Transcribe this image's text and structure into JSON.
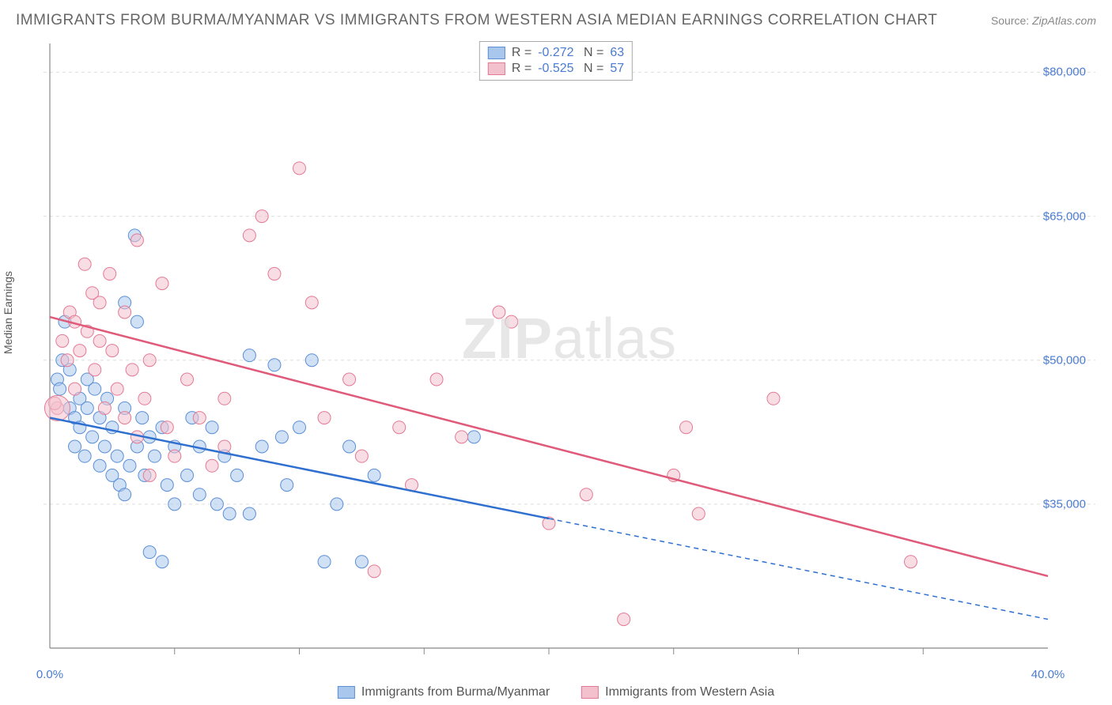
{
  "title": "IMMIGRANTS FROM BURMA/MYANMAR VS IMMIGRANTS FROM WESTERN ASIA MEDIAN EARNINGS CORRELATION CHART",
  "source_label": "Source:",
  "source_value": "ZipAtlas.com",
  "y_axis_label": "Median Earnings",
  "watermark_bold": "ZIP",
  "watermark_rest": "atlas",
  "x_min": 0.0,
  "x_max": 40.0,
  "y_min": 20000,
  "y_max": 83000,
  "y_ticks": [
    {
      "value": 35000,
      "label": "$35,000"
    },
    {
      "value": 50000,
      "label": "$50,000"
    },
    {
      "value": 65000,
      "label": "$65,000"
    },
    {
      "value": 80000,
      "label": "$80,000"
    }
  ],
  "x_ticks_major": [
    0,
    40
  ],
  "x_tick_labels": [
    {
      "value": 0,
      "label": "0.0%"
    },
    {
      "value": 40,
      "label": "40.0%"
    }
  ],
  "x_ticks_minor": [
    5,
    10,
    15,
    20,
    25,
    30,
    35
  ],
  "grid_color": "#dddddd",
  "axis_color": "#888888",
  "series": [
    {
      "name": "Immigrants from Burma/Myanmar",
      "fill": "#a9c7ec",
      "stroke": "#5b8fd6",
      "fill_opacity": 0.55,
      "line_color": "#2e6fd0",
      "R": "-0.272",
      "N": "63",
      "trend": {
        "x1": 0,
        "y1": 44000,
        "x2": 20,
        "y2": 33500,
        "x_solid_end": 20,
        "x2_ext": 40,
        "y2_ext": 23000
      },
      "points": [
        [
          0.3,
          48000
        ],
        [
          0.4,
          47000
        ],
        [
          0.5,
          50000
        ],
        [
          0.6,
          54000
        ],
        [
          0.8,
          45000
        ],
        [
          0.8,
          49000
        ],
        [
          1.0,
          41000
        ],
        [
          1.0,
          44000
        ],
        [
          1.2,
          46000
        ],
        [
          1.2,
          43000
        ],
        [
          1.4,
          40000
        ],
        [
          1.5,
          48000
        ],
        [
          1.5,
          45000
        ],
        [
          1.7,
          42000
        ],
        [
          1.8,
          47000
        ],
        [
          2.0,
          39000
        ],
        [
          2.0,
          44000
        ],
        [
          2.2,
          41000
        ],
        [
          2.3,
          46000
        ],
        [
          2.5,
          38000
        ],
        [
          2.5,
          43000
        ],
        [
          2.7,
          40000
        ],
        [
          2.8,
          37000
        ],
        [
          3.0,
          36000
        ],
        [
          3.0,
          45000
        ],
        [
          3.2,
          39000
        ],
        [
          3.4,
          63000
        ],
        [
          3.5,
          41000
        ],
        [
          3.5,
          54000
        ],
        [
          3.7,
          44000
        ],
        [
          3.8,
          38000
        ],
        [
          4.0,
          30000
        ],
        [
          4.0,
          42000
        ],
        [
          4.2,
          40000
        ],
        [
          4.5,
          29000
        ],
        [
          4.5,
          43000
        ],
        [
          4.7,
          37000
        ],
        [
          5.0,
          35000
        ],
        [
          5.0,
          41000
        ],
        [
          5.5,
          38000
        ],
        [
          5.7,
          44000
        ],
        [
          6.0,
          36000
        ],
        [
          6.0,
          41000
        ],
        [
          6.5,
          43000
        ],
        [
          6.7,
          35000
        ],
        [
          7.0,
          40000
        ],
        [
          7.2,
          34000
        ],
        [
          7.5,
          38000
        ],
        [
          8.0,
          50500
        ],
        [
          8.0,
          34000
        ],
        [
          8.5,
          41000
        ],
        [
          9.0,
          49500
        ],
        [
          9.3,
          42000
        ],
        [
          9.5,
          37000
        ],
        [
          10.0,
          43000
        ],
        [
          10.5,
          50000
        ],
        [
          11.0,
          29000
        ],
        [
          11.5,
          35000
        ],
        [
          12.0,
          41000
        ],
        [
          12.5,
          29000
        ],
        [
          13.0,
          38000
        ],
        [
          17.0,
          42000
        ],
        [
          3.0,
          56000
        ]
      ]
    },
    {
      "name": "Immigrants from Western Asia",
      "fill": "#f3c1cd",
      "stroke": "#e47a94",
      "fill_opacity": 0.55,
      "line_color": "#e05a7a",
      "R": "-0.525",
      "N": "57",
      "trend": {
        "x1": 0,
        "y1": 54500,
        "x2": 40,
        "y2": 27500,
        "x_solid_end": 40
      },
      "points": [
        [
          0.3,
          45000
        ],
        [
          0.5,
          52000
        ],
        [
          0.7,
          50000
        ],
        [
          0.8,
          55000
        ],
        [
          1.0,
          47000
        ],
        [
          1.0,
          54000
        ],
        [
          1.2,
          51000
        ],
        [
          1.4,
          60000
        ],
        [
          1.5,
          53000
        ],
        [
          1.7,
          57000
        ],
        [
          1.8,
          49000
        ],
        [
          2.0,
          56000
        ],
        [
          2.0,
          52000
        ],
        [
          2.2,
          45000
        ],
        [
          2.4,
          59000
        ],
        [
          2.5,
          51000
        ],
        [
          2.7,
          47000
        ],
        [
          3.0,
          55000
        ],
        [
          3.0,
          44000
        ],
        [
          3.3,
          49000
        ],
        [
          3.5,
          62500
        ],
        [
          3.5,
          42000
        ],
        [
          3.8,
          46000
        ],
        [
          4.0,
          50000
        ],
        [
          4.0,
          38000
        ],
        [
          4.5,
          58000
        ],
        [
          4.7,
          43000
        ],
        [
          5.0,
          40000
        ],
        [
          5.5,
          48000
        ],
        [
          6.0,
          44000
        ],
        [
          6.5,
          39000
        ],
        [
          7.0,
          46000
        ],
        [
          7.0,
          41000
        ],
        [
          8.0,
          63000
        ],
        [
          8.5,
          65000
        ],
        [
          9.0,
          59000
        ],
        [
          10.0,
          70000
        ],
        [
          10.5,
          56000
        ],
        [
          11.0,
          44000
        ],
        [
          12.0,
          48000
        ],
        [
          12.5,
          40000
        ],
        [
          13.0,
          28000
        ],
        [
          14.0,
          43000
        ],
        [
          14.5,
          37000
        ],
        [
          15.5,
          48000
        ],
        [
          16.5,
          42000
        ],
        [
          18.0,
          55000
        ],
        [
          18.5,
          54000
        ],
        [
          20.0,
          33000
        ],
        [
          21.5,
          36000
        ],
        [
          23.0,
          23000
        ],
        [
          25.0,
          38000
        ],
        [
          25.5,
          43000
        ],
        [
          26.0,
          34000
        ],
        [
          29.0,
          46000
        ],
        [
          34.5,
          29000
        ],
        [
          0.2,
          45500
        ]
      ],
      "large_point": [
        0.3,
        45000,
        16
      ]
    }
  ]
}
